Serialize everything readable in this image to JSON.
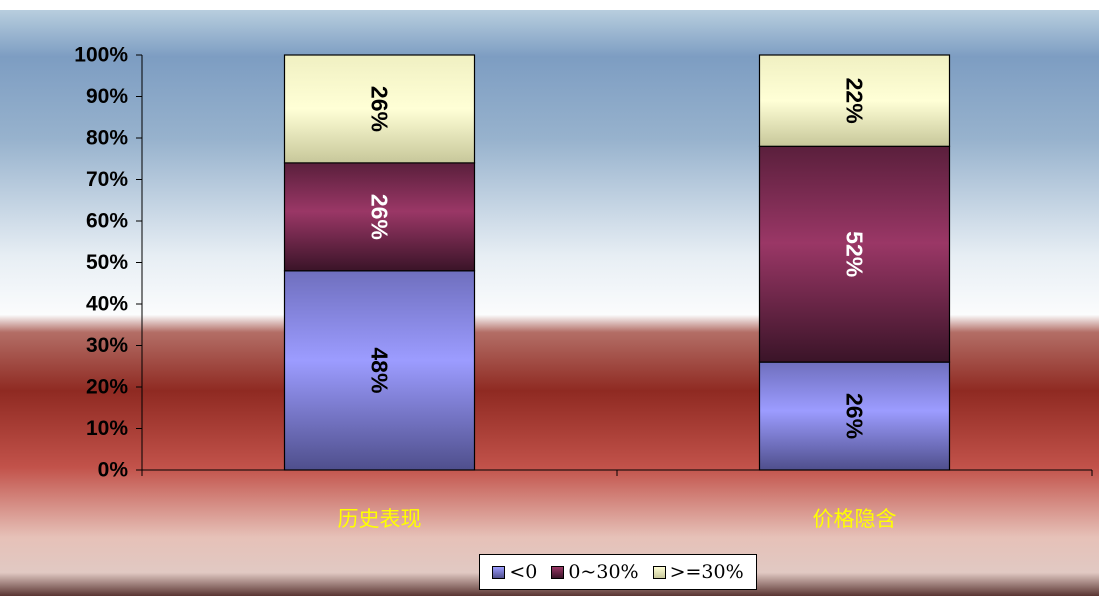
{
  "chart_data": {
    "type": "bar",
    "stacked": true,
    "orientation": "vertical",
    "categories": [
      "历史表现",
      "价格隐含"
    ],
    "series": [
      {
        "name": "<0",
        "values": [
          48,
          26
        ],
        "labels": [
          "48%",
          "26%"
        ],
        "color": "#9b9bff"
      },
      {
        "name": "0~30%",
        "values": [
          26,
          52
        ],
        "labels": [
          "26%",
          "52%"
        ],
        "color": "#993366"
      },
      {
        "name": ">=30%",
        "values": [
          26,
          22
        ],
        "labels": [
          "26%",
          "22%"
        ],
        "color": "#ffffcc"
      }
    ],
    "yticks": [
      "0%",
      "10%",
      "20%",
      "30%",
      "40%",
      "50%",
      "60%",
      "70%",
      "80%",
      "90%",
      "100%"
    ],
    "ylim": [
      0,
      100
    ],
    "category_label_color": "#ffff00",
    "legend_position": "bottom",
    "grid": false
  }
}
